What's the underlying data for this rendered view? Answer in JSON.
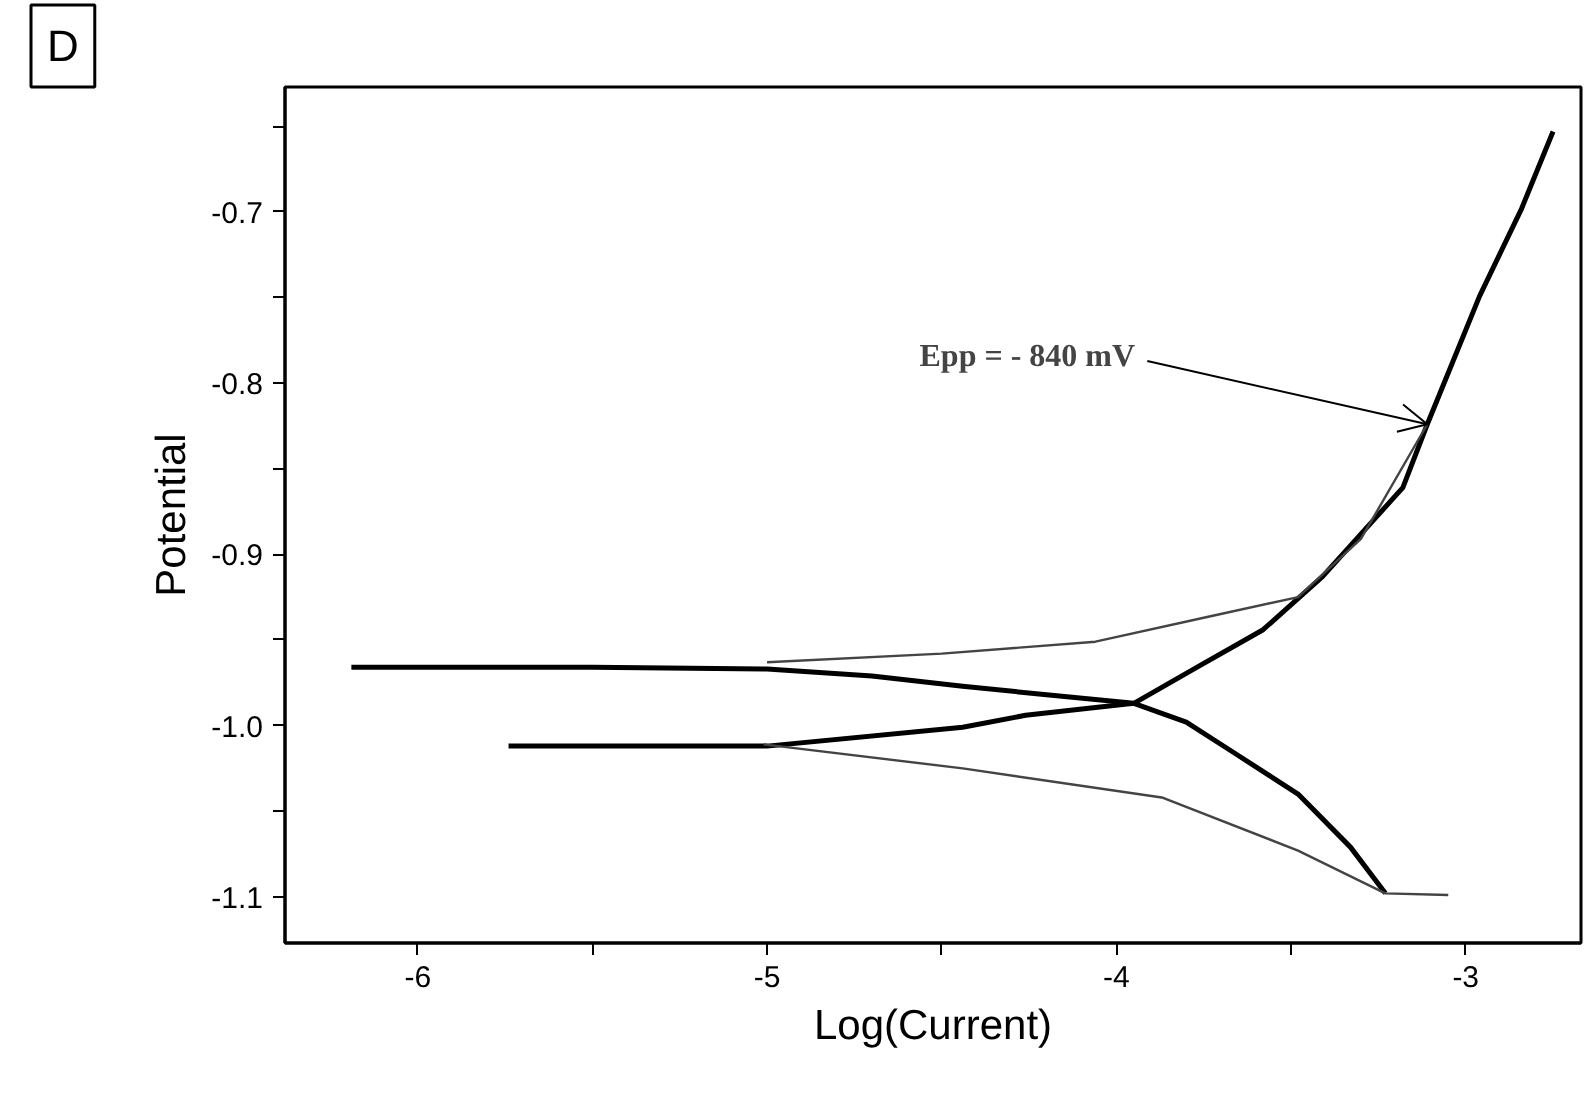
{
  "chart_data": {
    "type": "line",
    "xlabel": "Log(Current)",
    "ylabel": "Potential",
    "annotations": [
      "D",
      {
        "text": "Epp = - 840 mV",
        "x": -3.11,
        "y": -0.824
      }
    ],
    "xlim": [
      -6.38,
      -2.67
    ],
    "ylim": [
      -1.127,
      -0.627
    ],
    "xticks": [
      -6,
      {
        "value": -5.5,
        "label": null
      },
      -5,
      {
        "value": -4.5,
        "label": null
      },
      -4,
      {
        "value": -3.5,
        "label": null
      },
      -3
    ],
    "yticks": [
      -1.1,
      {
        "value": -1.05,
        "label": null
      },
      {
        "value": -1.0,
        "label": "-1.0"
      },
      {
        "value": -0.95,
        "label": null
      },
      -0.9,
      {
        "value": -0.85,
        "label": null
      },
      -0.8,
      {
        "value": -0.75,
        "label": null
      },
      -0.7,
      {
        "value": -0.65,
        "label": null
      }
    ],
    "grid": false,
    "marker": "none",
    "line_style": "solid",
    "series": [
      {
        "color": "#000000",
        "x": [
          -6.19,
          -5.5,
          -5.0,
          -4.7,
          -4.44,
          -4.2,
          -3.95,
          -3.8,
          -3.67,
          -3.48,
          -3.33,
          -3.23
        ],
        "values": [
          -0.966,
          -0.966,
          -0.967,
          -0.971,
          -0.977,
          -0.982,
          -0.987,
          -0.998,
          -1.015,
          -1.04,
          -1.071,
          -1.098
        ]
      },
      {
        "color": "#000000",
        "x": [
          -5.74,
          -5.0,
          -4.44,
          -4.26,
          -3.95,
          -3.77,
          -3.58,
          -3.41,
          -3.18,
          -3.11,
          -2.96,
          -2.84,
          -2.75
        ],
        "values": [
          -1.012,
          -1.012,
          -1.001,
          -0.994,
          -0.987,
          -0.966,
          -0.944,
          -0.913,
          -0.861,
          -0.824,
          -0.749,
          -0.698,
          -0.653
        ]
      },
      {
        "color": "#444444",
        "x": [
          -5.0,
          -4.5,
          -4.06,
          -3.75,
          -3.48,
          -3.3,
          -3.11
        ],
        "values": [
          -0.963,
          -0.958,
          -0.951,
          -0.937,
          -0.925,
          -0.891,
          -0.824
        ]
      },
      {
        "color": "#444444",
        "x": [
          -5.01,
          -4.44,
          -3.87,
          -3.48,
          -3.23,
          -3.05
        ],
        "values": [
          -1.011,
          -1.025,
          -1.042,
          -1.073,
          -1.098,
          -1.099
        ]
      }
    ]
  }
}
